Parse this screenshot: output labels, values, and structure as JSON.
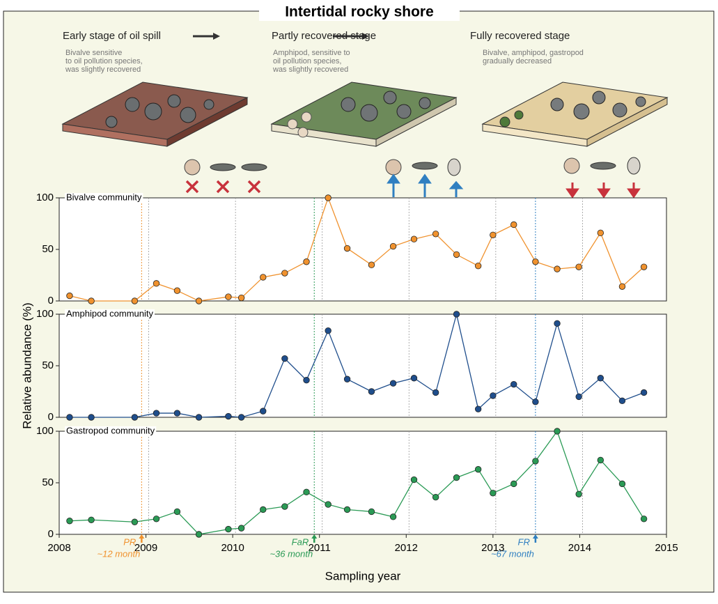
{
  "header": {
    "title": "Intertidal  rocky shore"
  },
  "stages": [
    {
      "title": "Early stage of oil spill",
      "description": [
        "Bivalve sensitive",
        "to oil pollution species,",
        "was slightly recovered"
      ]
    },
    {
      "title": "Partly recovered stage",
      "description": [
        "Amphipod, sensitive to",
        "oil pollution species,",
        "was slightly recovered"
      ]
    },
    {
      "title": "Fully recovered stage",
      "description": [
        "Bivalve, amphipod, gastropod",
        "gradually decreased"
      ]
    }
  ],
  "y_label": "Relative abundance (%)",
  "x_label": "Sampling year",
  "chart_data": [
    {
      "type": "line",
      "title": "Bivalve community",
      "color": "#f0922e",
      "x": [
        2008.12,
        2008.37,
        2008.87,
        2009.12,
        2009.36,
        2009.61,
        2009.95,
        2010.1,
        2010.35,
        2010.6,
        2010.85,
        2011.1,
        2011.32,
        2011.6,
        2011.85,
        2012.09,
        2012.34,
        2012.58,
        2012.83,
        2013.0,
        2013.24,
        2013.49,
        2013.74,
        2013.99,
        2014.24,
        2014.49,
        2014.74
      ],
      "values": [
        5,
        0,
        0,
        17,
        10,
        0,
        4,
        3,
        23,
        27,
        38,
        100,
        51,
        35,
        53,
        60,
        65,
        45,
        34,
        64,
        74,
        38,
        31,
        33,
        66,
        14,
        33
      ],
      "xlim": [
        2008,
        2015
      ],
      "ylim": [
        0,
        100
      ],
      "yticks": [
        0,
        50,
        100
      ]
    },
    {
      "type": "line",
      "title": "Amphipod community",
      "color": "#1f4e8c",
      "x": [
        2008.12,
        2008.37,
        2008.87,
        2009.12,
        2009.36,
        2009.61,
        2009.95,
        2010.1,
        2010.35,
        2010.6,
        2010.85,
        2011.1,
        2011.32,
        2011.6,
        2011.85,
        2012.09,
        2012.34,
        2012.58,
        2012.83,
        2013.0,
        2013.24,
        2013.49,
        2013.74,
        2013.99,
        2014.24,
        2014.49,
        2014.74
      ],
      "values": [
        0,
        0,
        0,
        4,
        4,
        0,
        1,
        0,
        6,
        57,
        36,
        84,
        37,
        25,
        33,
        38,
        24,
        100,
        8,
        21,
        32,
        15,
        91,
        20,
        38,
        16,
        24
      ],
      "xlim": [
        2008,
        2015
      ],
      "ylim": [
        0,
        100
      ],
      "yticks": [
        0,
        50,
        100
      ]
    },
    {
      "type": "line",
      "title": "Gastropod community",
      "color": "#2a9a55",
      "x": [
        2008.12,
        2008.37,
        2008.87,
        2009.12,
        2009.36,
        2009.61,
        2009.95,
        2010.1,
        2010.35,
        2010.6,
        2010.85,
        2011.1,
        2011.32,
        2011.6,
        2011.85,
        2012.09,
        2012.34,
        2012.58,
        2012.83,
        2013.0,
        2013.24,
        2013.49,
        2013.74,
        2013.99,
        2014.24,
        2014.49,
        2014.74
      ],
      "values": [
        13,
        14,
        12,
        15,
        22,
        0,
        5,
        6,
        24,
        27,
        41,
        29,
        24,
        22,
        17,
        53,
        36,
        55,
        63,
        40,
        49,
        71,
        100,
        39,
        72,
        49,
        15
      ],
      "xlim": [
        2008,
        2015
      ],
      "ylim": [
        0,
        100
      ],
      "yticks": [
        0,
        50,
        100
      ],
      "xticks": [
        2008,
        2009,
        2010,
        2011,
        2012,
        2013,
        2014,
        2015
      ],
      "annotations": [
        {
          "label": "PR",
          "sublabel": "~12 month",
          "x": 2008.95,
          "color": "#f0922e"
        },
        {
          "label": "FaR",
          "sublabel": "~36 month",
          "x": 2010.94,
          "color": "#2a9a55"
        },
        {
          "label": "FR",
          "sublabel": "~67 month",
          "x": 2013.49,
          "color": "#2f7fc1"
        }
      ]
    }
  ]
}
